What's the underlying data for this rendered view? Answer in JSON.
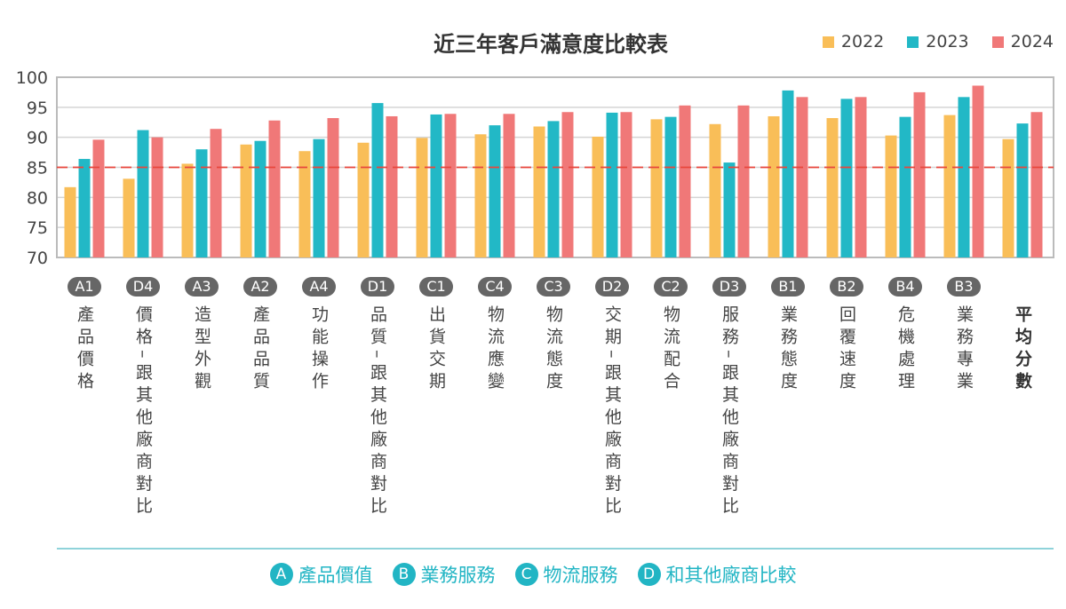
{
  "chart_data": {
    "type": "bar",
    "title": "近三年客戶滿意度比較表",
    "ylim": [
      70,
      100
    ],
    "yticks": [
      70,
      75,
      80,
      85,
      90,
      95,
      100
    ],
    "grid": true,
    "legend_position": "top-right",
    "reference_line": {
      "value": 85,
      "color": "#e8463c",
      "style": "dashed"
    },
    "categories": [
      {
        "code": "A1",
        "label": "產品價格"
      },
      {
        "code": "D4",
        "label": "價格–跟其他廠商對比"
      },
      {
        "code": "A3",
        "label": "造型外觀"
      },
      {
        "code": "A2",
        "label": "產品品質"
      },
      {
        "code": "A4",
        "label": "功能操作"
      },
      {
        "code": "D1",
        "label": "品質–跟其他廠商對比"
      },
      {
        "code": "C1",
        "label": "出貨交期"
      },
      {
        "code": "C4",
        "label": "物流應變"
      },
      {
        "code": "C3",
        "label": "物流態度"
      },
      {
        "code": "D2",
        "label": "交期–跟其他廠商對比"
      },
      {
        "code": "C2",
        "label": "物流配合"
      },
      {
        "code": "D3",
        "label": "服務–跟其他廠商對比"
      },
      {
        "code": "B1",
        "label": "業務態度"
      },
      {
        "code": "B2",
        "label": "回覆速度"
      },
      {
        "code": "B4",
        "label": "危機處理"
      },
      {
        "code": "B3",
        "label": "業務專業"
      },
      {
        "code": "",
        "label": "平均分數"
      }
    ],
    "series": [
      {
        "name": "2022",
        "color": "#f9be58",
        "values": [
          81.7,
          83.1,
          85.6,
          88.8,
          87.7,
          89.1,
          89.9,
          90.5,
          91.8,
          90.1,
          93.0,
          92.2,
          93.5,
          93.2,
          90.3,
          93.7,
          89.7
        ]
      },
      {
        "name": "2023",
        "color": "#22b8c6",
        "values": [
          86.4,
          91.2,
          88.0,
          89.4,
          89.7,
          95.7,
          93.8,
          92.0,
          92.7,
          94.1,
          93.4,
          85.8,
          97.8,
          96.4,
          93.4,
          96.7,
          92.3
        ]
      },
      {
        "name": "2024",
        "color": "#f07878",
        "values": [
          89.6,
          90.0,
          91.4,
          92.8,
          93.2,
          93.5,
          93.9,
          93.9,
          94.2,
          94.2,
          95.3,
          95.3,
          96.7,
          96.7,
          97.5,
          98.6,
          94.2
        ]
      }
    ]
  },
  "group_legend": [
    {
      "code": "A",
      "label": "產品價值"
    },
    {
      "code": "B",
      "label": "業務服務"
    },
    {
      "code": "C",
      "label": "物流服務"
    },
    {
      "code": "D",
      "label": "和其他廠商比較"
    }
  ]
}
